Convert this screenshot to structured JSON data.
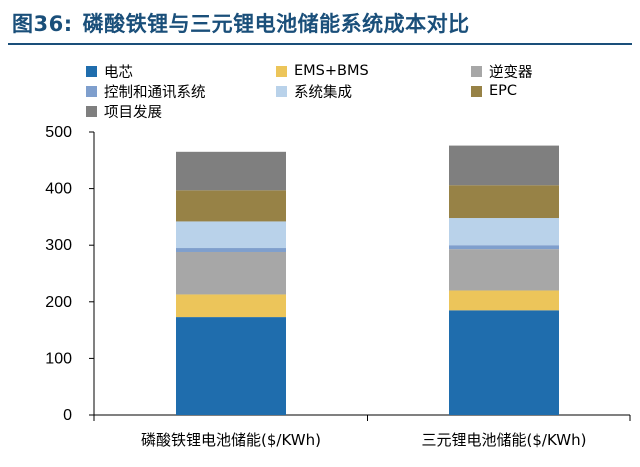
{
  "figure": {
    "number": "图36:",
    "title": "磷酸铁锂与三元锂电池储能系统成本对比"
  },
  "chart_data": {
    "type": "bar",
    "stacked": true,
    "title": "磷酸铁锂与三元锂电池储能系统成本对比",
    "categories": [
      "磷酸铁锂电池储能($/KWh)",
      "三元锂电池储能($/KWh)"
    ],
    "series": [
      {
        "name": "电芯",
        "color": "#1f6dad",
        "values": [
          173,
          185
        ]
      },
      {
        "name": "EMS+BMS",
        "color": "#ecc55a",
        "values": [
          40,
          35
        ]
      },
      {
        "name": "逆变器",
        "color": "#a7a7a7",
        "values": [
          75,
          73
        ]
      },
      {
        "name": "控制和通讯系统",
        "color": "#7f9fcd",
        "values": [
          7,
          7
        ]
      },
      {
        "name": "系统集成",
        "color": "#b9d2ea",
        "values": [
          47,
          48
        ]
      },
      {
        "name": "EPC",
        "color": "#978246",
        "values": [
          55,
          58
        ]
      },
      {
        "name": "项目发展",
        "color": "#7f7f7f",
        "values": [
          68,
          70
        ]
      }
    ],
    "ylim": [
      0,
      500
    ],
    "yticks": [
      0,
      100,
      200,
      300,
      400,
      500
    ],
    "xlabel": "",
    "ylabel": "",
    "legend_position": "top"
  }
}
